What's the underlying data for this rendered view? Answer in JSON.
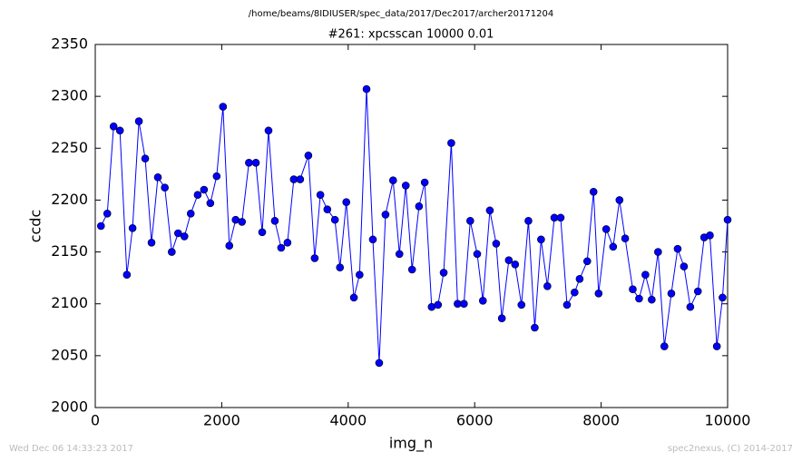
{
  "chart_data": {
    "type": "line",
    "suptitle": "/home/beams/8IDIUSER/spec_data/2017/Dec2017/archer20171204",
    "title": "#261: xpcsscan 10000 0.01",
    "x_label": "img_n",
    "y_label": "ccdc",
    "annotations": [
      "Wed Dec 06 14:33:23 2017",
      "spec2nexus, (C) 2014-2017"
    ],
    "color": "#0000ff",
    "x": [
      90,
      190,
      290,
      390,
      500,
      590,
      690,
      790,
      890,
      990,
      1100,
      1210,
      1310,
      1410,
      1510,
      1620,
      1720,
      1820,
      1920,
      2020,
      2120,
      2220,
      2320,
      2430,
      2540,
      2640,
      2740,
      2840,
      2940,
      3040,
      3140,
      3240,
      3370,
      3470,
      3560,
      3670,
      3790,
      3870,
      3970,
      4090,
      4180,
      4290,
      4390,
      4490,
      4590,
      4710,
      4810,
      4910,
      5010,
      5120,
      5210,
      5320,
      5420,
      5510,
      5630,
      5730,
      5830,
      5930,
      6040,
      6130,
      6240,
      6340,
      6430,
      6540,
      6640,
      6740,
      6850,
      6950,
      7050,
      7150,
      7260,
      7360,
      7460,
      7580,
      7660,
      7780,
      7880,
      7960,
      8080,
      8190,
      8290,
      8380,
      8500,
      8600,
      8700,
      8800,
      8900,
      9000,
      9110,
      9210,
      9310,
      9410,
      9530,
      9630,
      9720,
      9830,
      9920,
      10000
    ],
    "values": [
      2175,
      2187,
      2271,
      2267,
      2128,
      2173,
      2276,
      2240,
      2159,
      2222,
      2212,
      2150,
      2168,
      2165,
      2187,
      2205,
      2210,
      2197,
      2223,
      2290,
      2156,
      2181,
      2179,
      2236,
      2236,
      2169,
      2267,
      2180,
      2154,
      2159,
      2220,
      2220,
      2243,
      2144,
      2205,
      2191,
      2181,
      2135,
      2198,
      2106,
      2128,
      2307,
      2162,
      2043,
      2186,
      2219,
      2148,
      2214,
      2133,
      2194,
      2217,
      2097,
      2099,
      2130,
      2255,
      2100,
      2100,
      2180,
      2148,
      2103,
      2190,
      2158,
      2086,
      2142,
      2138,
      2099,
      2180,
      2077,
      2162,
      2117,
      2183,
      2183,
      2099,
      2111,
      2124,
      2141,
      2208,
      2110,
      2172,
      2155,
      2200,
      2163,
      2114,
      2105,
      2128,
      2104,
      2150,
      2059,
      2110,
      2153,
      2136,
      2097,
      2112,
      2164,
      2166,
      2059,
      2106,
      2181
    ],
    "xlim": [
      0,
      10000
    ],
    "xticks": [
      0,
      2000,
      4000,
      6000,
      8000,
      10000
    ],
    "ylim": [
      2000,
      2350
    ],
    "yticks": [
      2000,
      2050,
      2100,
      2150,
      2200,
      2250,
      2300,
      2350
    ]
  }
}
